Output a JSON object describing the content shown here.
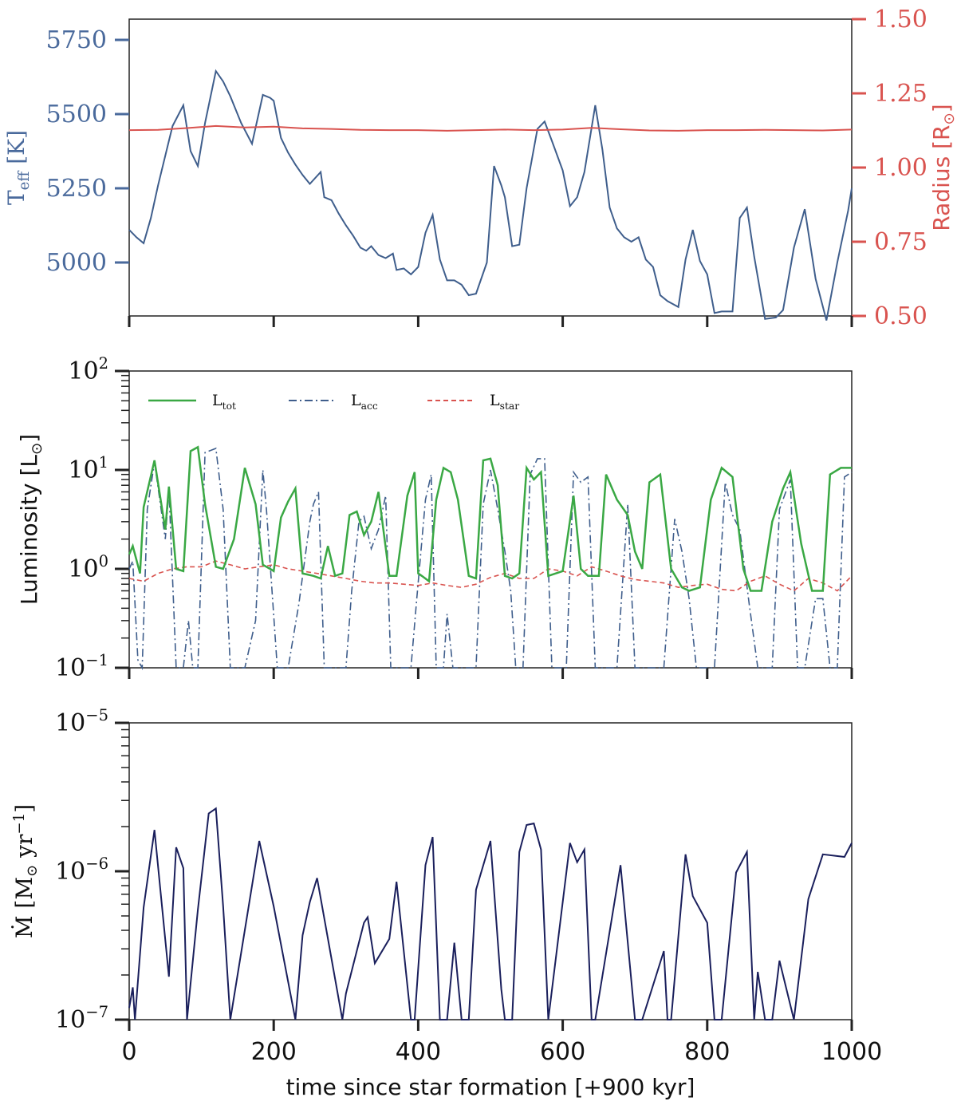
{
  "figure": {
    "shared_xlabel": "time since star formation [+900 kyr]"
  },
  "chart_data": [
    {
      "type": "line",
      "panel": "top",
      "xlim": [
        0,
        1000
      ],
      "ylim_left": [
        4820,
        5820
      ],
      "ylim_right": [
        0.5,
        1.5
      ],
      "ylabel_left": {
        "base": "T",
        "sub": "eff",
        "unit": " [K]"
      },
      "ylabel_right": {
        "base": "Radius [R",
        "sub": "⊙",
        "unit": "]"
      },
      "left_ticks": [
        "5000",
        "5250",
        "5500",
        "5750"
      ],
      "right_ticks": [
        "0.50",
        "0.75",
        "1.00",
        "1.25",
        "1.50"
      ],
      "x_ticks": [
        "0",
        "200",
        "400",
        "600",
        "800",
        "1000"
      ],
      "colors": {
        "teff": "#3f5e8c",
        "radius": "#d9534f",
        "axis_left": "#4a6a9c",
        "axis_right": "#d9534f"
      },
      "series": [
        {
          "name": "Teff",
          "axis": "left",
          "x": [
            0,
            10,
            20,
            30,
            40,
            55,
            60,
            75,
            85,
            95,
            105,
            120,
            130,
            140,
            155,
            170,
            185,
            195,
            200,
            210,
            220,
            230,
            240,
            250,
            265,
            270,
            280,
            290,
            300,
            310,
            320,
            328,
            335,
            345,
            355,
            365,
            370,
            380,
            390,
            400,
            410,
            420,
            430,
            440,
            450,
            460,
            470,
            480,
            495,
            505,
            515,
            520,
            530,
            540,
            550,
            565,
            575,
            585,
            600,
            610,
            620,
            630,
            645,
            655,
            665,
            675,
            685,
            695,
            705,
            715,
            725,
            735,
            745,
            760,
            770,
            780,
            790,
            800,
            810,
            820,
            835,
            845,
            855,
            865,
            880,
            895,
            905,
            920,
            935,
            950,
            965,
            980,
            995,
            1000
          ],
          "y": [
            5110,
            5085,
            5065,
            5150,
            5260,
            5410,
            5460,
            5530,
            5375,
            5325,
            5470,
            5645,
            5610,
            5560,
            5470,
            5400,
            5565,
            5555,
            5545,
            5420,
            5370,
            5330,
            5295,
            5265,
            5305,
            5220,
            5210,
            5165,
            5125,
            5090,
            5050,
            5040,
            5055,
            5025,
            5015,
            5030,
            4975,
            4980,
            4960,
            4985,
            5100,
            5160,
            5010,
            4940,
            4940,
            4925,
            4890,
            4895,
            5000,
            5325,
            5260,
            5220,
            5055,
            5060,
            5250,
            5450,
            5475,
            5410,
            5310,
            5190,
            5220,
            5305,
            5530,
            5380,
            5185,
            5115,
            5085,
            5070,
            5085,
            5010,
            4985,
            4890,
            4870,
            4850,
            5010,
            5110,
            5005,
            4960,
            4830,
            4835,
            4835,
            5150,
            5185,
            5020,
            4810,
            4815,
            4840,
            5050,
            5180,
            4945,
            4805,
            5000,
            5175,
            5250
          ]
        },
        {
          "name": "Radius",
          "axis": "right",
          "x": [
            0,
            40,
            80,
            120,
            160,
            200,
            240,
            280,
            320,
            360,
            400,
            440,
            480,
            520,
            560,
            600,
            640,
            680,
            720,
            760,
            800,
            840,
            880,
            920,
            960,
            1000
          ],
          "y": [
            1.126,
            1.127,
            1.133,
            1.14,
            1.135,
            1.138,
            1.132,
            1.13,
            1.127,
            1.126,
            1.126,
            1.124,
            1.126,
            1.128,
            1.126,
            1.128,
            1.134,
            1.129,
            1.125,
            1.124,
            1.126,
            1.126,
            1.127,
            1.126,
            1.125,
            1.128
          ]
        }
      ]
    },
    {
      "type": "line",
      "panel": "middle",
      "scale": "log",
      "xlim": [
        0,
        1000
      ],
      "ylim": [
        0.1,
        100
      ],
      "ylabel": {
        "base": "Luminosity [L",
        "sub": "⊙",
        "unit": "]"
      },
      "y_ticks": [
        {
          "base": "10",
          "exp": "−1"
        },
        {
          "base": "10",
          "exp": "0"
        },
        {
          "base": "10",
          "exp": "1"
        },
        {
          "base": "10",
          "exp": "2"
        }
      ],
      "legend_position": "top",
      "colors": {
        "ltot": "#3aa844",
        "lacc": "#3f5e8c",
        "lstar": "#d9534f"
      },
      "series": [
        {
          "name": "L_tot",
          "label": "L",
          "sub": "tot",
          "style": "solid",
          "x": [
            0,
            5,
            15,
            20,
            35,
            50,
            55,
            65,
            75,
            85,
            95,
            105,
            120,
            130,
            145,
            160,
            175,
            185,
            195,
            200,
            210,
            220,
            230,
            240,
            255,
            265,
            275,
            285,
            295,
            305,
            315,
            325,
            335,
            345,
            360,
            370,
            385,
            395,
            400,
            405,
            415,
            425,
            435,
            445,
            455,
            470,
            480,
            490,
            500,
            510,
            520,
            530,
            540,
            550,
            560,
            570,
            580,
            600,
            615,
            625,
            635,
            650,
            660,
            675,
            690,
            700,
            710,
            720,
            735,
            750,
            765,
            775,
            790,
            805,
            820,
            835,
            850,
            860,
            875,
            890,
            905,
            915,
            930,
            945,
            960,
            970,
            985,
            1000
          ],
          "y": [
            1.4,
            1.7,
            0.9,
            4.2,
            12.5,
            2.5,
            6.8,
            1.0,
            0.95,
            15.5,
            17.0,
            4.5,
            1.05,
            1.0,
            2.0,
            10.5,
            4.5,
            1.1,
            1.0,
            0.95,
            3.3,
            4.8,
            6.5,
            0.9,
            0.85,
            0.8,
            1.7,
            0.85,
            0.9,
            3.5,
            3.8,
            2.2,
            3.0,
            6.0,
            0.85,
            0.85,
            5.5,
            9.5,
            0.9,
            0.85,
            0.75,
            5.0,
            10.5,
            9.5,
            5.0,
            0.85,
            0.8,
            12.5,
            13.0,
            7.0,
            0.85,
            0.8,
            0.9,
            10.5,
            8.0,
            9.5,
            0.85,
            0.95,
            5.5,
            1.0,
            0.85,
            0.85,
            9.0,
            5.0,
            3.5,
            1.5,
            1.0,
            7.5,
            9.0,
            1.0,
            0.65,
            0.6,
            0.65,
            5.0,
            10.5,
            8.5,
            1.0,
            0.6,
            0.6,
            3.0,
            6.5,
            9.5,
            1.8,
            0.6,
            0.6,
            9.0,
            10.5,
            10.5
          ]
        },
        {
          "name": "L_acc",
          "label": "L",
          "sub": "acc",
          "style": "dashdot",
          "x": [
            0,
            5,
            12,
            18,
            25,
            35,
            50,
            55,
            65,
            75,
            82,
            88,
            95,
            105,
            120,
            130,
            140,
            160,
            175,
            185,
            190,
            205,
            220,
            235,
            250,
            255,
            262,
            270,
            278,
            290,
            300,
            308,
            318,
            325,
            335,
            345,
            355,
            362,
            370,
            380,
            390,
            398,
            410,
            418,
            425,
            435,
            440,
            448,
            455,
            462,
            470,
            480,
            490,
            500,
            510,
            520,
            528,
            535,
            545,
            555,
            565,
            575,
            585,
            595,
            605,
            615,
            625,
            635,
            645,
            655,
            665,
            675,
            690,
            700,
            710,
            720,
            730,
            740,
            755,
            765,
            775,
            785,
            795,
            810,
            825,
            835,
            845,
            858,
            870,
            880,
            890,
            900,
            915,
            925,
            935,
            950,
            960,
            970,
            980,
            990,
            1000
          ],
          "y": [
            1.0,
            1.2,
            0.12,
            0.1,
            4.0,
            12.0,
            2.0,
            6.5,
            0.1,
            0.1,
            0.3,
            0.1,
            0.1,
            15.0,
            16.5,
            4.0,
            0.1,
            0.1,
            0.3,
            10.0,
            4.0,
            0.1,
            0.1,
            0.45,
            3.0,
            4.5,
            6.0,
            0.1,
            0.1,
            0.1,
            0.1,
            0.6,
            3.0,
            3.4,
            1.6,
            2.5,
            5.5,
            0.1,
            0.1,
            0.1,
            0.1,
            0.5,
            5.0,
            9.0,
            0.1,
            0.1,
            0.35,
            0.1,
            0.1,
            0.1,
            0.1,
            0.1,
            4.5,
            10.0,
            4.0,
            1.5,
            0.6,
            0.1,
            0.1,
            9.0,
            13.0,
            13.0,
            0.1,
            0.1,
            0.1,
            9.5,
            7.5,
            8.5,
            0.1,
            0.1,
            0.1,
            0.1,
            4.5,
            0.1,
            0.1,
            0.1,
            0.1,
            0.1,
            3.2,
            1.5,
            0.5,
            0.1,
            0.1,
            0.1,
            7.5,
            3.5,
            2.5,
            0.45,
            0.1,
            0.1,
            0.1,
            4.0,
            8.0,
            0.1,
            0.1,
            0.5,
            0.5,
            0.1,
            0.1,
            8.5,
            9.5
          ]
        },
        {
          "name": "L_star",
          "label": "L",
          "sub": "star",
          "style": "dashed",
          "x": [
            0,
            20,
            40,
            60,
            80,
            100,
            120,
            140,
            160,
            180,
            200,
            220,
            240,
            260,
            280,
            300,
            320,
            340,
            360,
            380,
            400,
            420,
            440,
            460,
            480,
            500,
            520,
            540,
            560,
            580,
            600,
            620,
            640,
            660,
            680,
            700,
            720,
            740,
            760,
            780,
            800,
            820,
            840,
            860,
            880,
            900,
            920,
            940,
            960,
            980,
            1000
          ],
          "y": [
            0.8,
            0.75,
            0.9,
            1.0,
            1.05,
            1.05,
            1.2,
            1.1,
            1.0,
            1.05,
            1.1,
            1.0,
            0.95,
            0.9,
            0.85,
            0.8,
            0.75,
            0.72,
            0.72,
            0.7,
            0.68,
            0.72,
            0.68,
            0.65,
            0.7,
            0.82,
            0.9,
            0.8,
            0.8,
            1.0,
            0.95,
            0.85,
            1.05,
            0.95,
            0.85,
            0.78,
            0.75,
            0.72,
            0.65,
            0.68,
            0.7,
            0.62,
            0.6,
            0.75,
            0.85,
            0.7,
            0.6,
            0.8,
            0.72,
            0.6,
            0.85
          ]
        }
      ]
    },
    {
      "type": "line",
      "panel": "bottom",
      "scale": "log",
      "xlim": [
        0,
        1000
      ],
      "ylim": [
        1e-07,
        1e-05
      ],
      "ylabel": {
        "base": "Ṁ [M",
        "sub": "⊙",
        "unit": " yr",
        "unit_sup": "−1",
        "close": "]"
      },
      "y_ticks": [
        {
          "base": "10",
          "exp": "−7"
        },
        {
          "base": "10",
          "exp": "−6"
        },
        {
          "base": "10",
          "exp": "−5"
        }
      ],
      "x_ticks": [
        "0",
        "200",
        "400",
        "600",
        "800",
        "1000"
      ],
      "xlabel": "time since star formation [+900 kyr]",
      "colors": {
        "mdot": "#1a1f5c"
      },
      "series": [
        {
          "name": "Mdot",
          "x": [
            0,
            5,
            8,
            20,
            35,
            55,
            65,
            75,
            80,
            95,
            110,
            120,
            130,
            140,
            180,
            200,
            230,
            240,
            250,
            260,
            295,
            300,
            325,
            330,
            340,
            360,
            370,
            390,
            395,
            410,
            420,
            430,
            440,
            450,
            460,
            470,
            480,
            500,
            515,
            520,
            530,
            540,
            550,
            560,
            570,
            580,
            610,
            620,
            630,
            640,
            645,
            680,
            700,
            710,
            740,
            745,
            750,
            770,
            780,
            800,
            810,
            820,
            840,
            855,
            865,
            870,
            880,
            890,
            900,
            920,
            940,
            960,
            990,
            1000
          ],
          "y": [
            1.2e-07,
            1.65e-07,
            1e-07,
            5.7e-07,
            1.9e-06,
            1.95e-07,
            1.45e-06,
            1.05e-06,
            1e-07,
            5.5e-07,
            2.45e-06,
            2.65e-06,
            5.8e-07,
            1e-07,
            1.6e-06,
            5.8e-07,
            1e-07,
            3.7e-07,
            6.2e-07,
            9e-07,
            1e-07,
            1.5e-07,
            4.5e-07,
            4.9e-07,
            2.4e-07,
            3.5e-07,
            8.5e-07,
            1e-07,
            1e-07,
            1.1e-06,
            1.7e-06,
            1e-07,
            1e-07,
            3.3e-07,
            1e-07,
            1e-07,
            7.5e-07,
            1.6e-06,
            1.6e-07,
            1e-07,
            1e-07,
            1.35e-06,
            2.05e-06,
            2.1e-06,
            1.4e-06,
            1e-07,
            1.55e-06,
            1.15e-06,
            1.4e-06,
            1e-07,
            1e-07,
            1.1e-06,
            1e-07,
            1e-07,
            2.9e-07,
            1e-07,
            1e-07,
            1.3e-06,
            6.8e-07,
            4.5e-07,
            1e-07,
            1e-07,
            9.8e-07,
            1.35e-06,
            1e-07,
            2.1e-07,
            1e-07,
            1e-07,
            2.5e-07,
            1e-07,
            6.5e-07,
            1.3e-06,
            1.25e-06,
            1.55e-06
          ]
        }
      ]
    }
  ]
}
